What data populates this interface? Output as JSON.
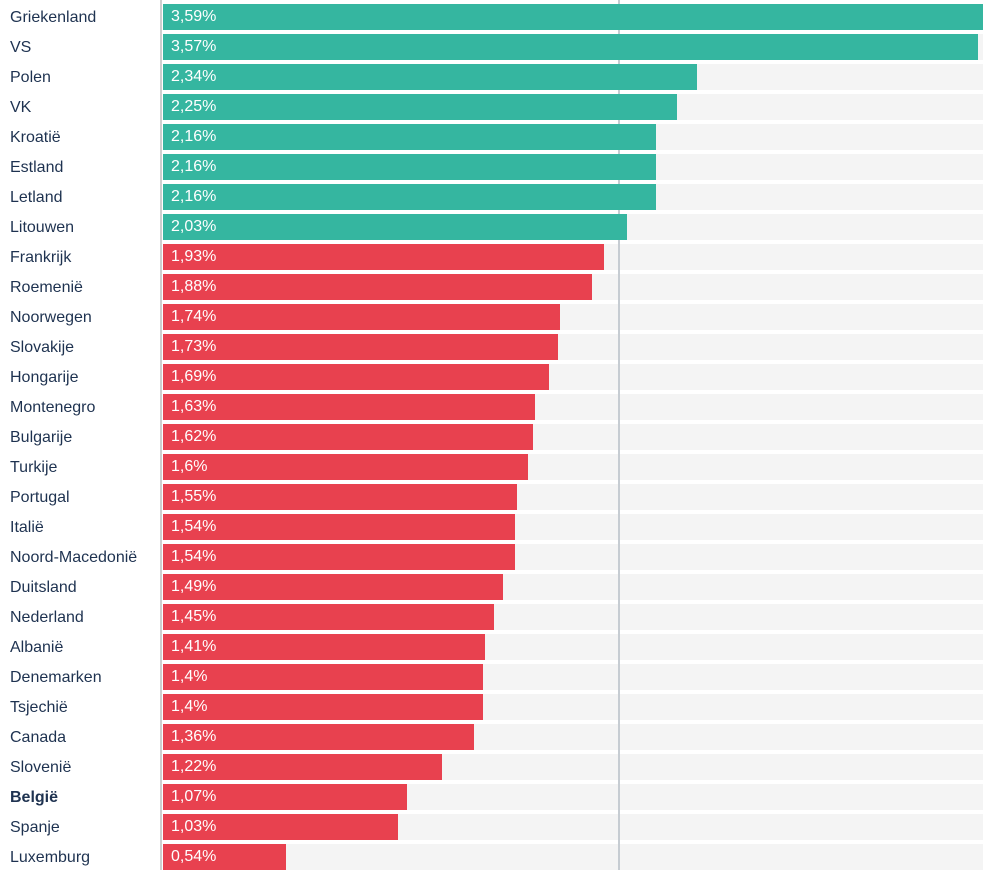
{
  "chart_data": {
    "type": "bar",
    "orientation": "horizontal",
    "title": "",
    "xlabel": "",
    "ylabel": "",
    "xlim": [
      0,
      3.59
    ],
    "gridline_at": 2,
    "grid": "single-vertical-line",
    "legend": "none",
    "value_format": "comma-decimal percent",
    "rows": [
      {
        "label": "Griekenland",
        "value": 3.59,
        "display": "3,59%",
        "group": "high",
        "bold": false
      },
      {
        "label": "VS",
        "value": 3.57,
        "display": "3,57%",
        "group": "high",
        "bold": false
      },
      {
        "label": "Polen",
        "value": 2.34,
        "display": "2,34%",
        "group": "high",
        "bold": false
      },
      {
        "label": "VK",
        "value": 2.25,
        "display": "2,25%",
        "group": "high",
        "bold": false
      },
      {
        "label": "Kroatië",
        "value": 2.16,
        "display": "2,16%",
        "group": "high",
        "bold": false
      },
      {
        "label": "Estland",
        "value": 2.16,
        "display": "2,16%",
        "group": "high",
        "bold": false
      },
      {
        "label": "Letland",
        "value": 2.16,
        "display": "2,16%",
        "group": "high",
        "bold": false
      },
      {
        "label": "Litouwen",
        "value": 2.03,
        "display": "2,03%",
        "group": "high",
        "bold": false
      },
      {
        "label": "Frankrijk",
        "value": 1.93,
        "display": "1,93%",
        "group": "low",
        "bold": false
      },
      {
        "label": "Roemenië",
        "value": 1.88,
        "display": "1,88%",
        "group": "low",
        "bold": false
      },
      {
        "label": "Noorwegen",
        "value": 1.74,
        "display": "1,74%",
        "group": "low",
        "bold": false
      },
      {
        "label": "Slovakije",
        "value": 1.73,
        "display": "1,73%",
        "group": "low",
        "bold": false
      },
      {
        "label": "Hongarije",
        "value": 1.69,
        "display": "1,69%",
        "group": "low",
        "bold": false
      },
      {
        "label": "Montenegro",
        "value": 1.63,
        "display": "1,63%",
        "group": "low",
        "bold": false
      },
      {
        "label": "Bulgarije",
        "value": 1.62,
        "display": "1,62%",
        "group": "low",
        "bold": false
      },
      {
        "label": "Turkije",
        "value": 1.6,
        "display": "1,6%",
        "group": "low",
        "bold": false
      },
      {
        "label": "Portugal",
        "value": 1.55,
        "display": "1,55%",
        "group": "low",
        "bold": false
      },
      {
        "label": "Italië",
        "value": 1.54,
        "display": "1,54%",
        "group": "low",
        "bold": false
      },
      {
        "label": "Noord-Macedonië",
        "value": 1.54,
        "display": "1,54%",
        "group": "low",
        "bold": false
      },
      {
        "label": "Duitsland",
        "value": 1.49,
        "display": "1,49%",
        "group": "low",
        "bold": false
      },
      {
        "label": "Nederland",
        "value": 1.45,
        "display": "1,45%",
        "group": "low",
        "bold": false
      },
      {
        "label": "Albanië",
        "value": 1.41,
        "display": "1,41%",
        "group": "low",
        "bold": false
      },
      {
        "label": "Denemarken",
        "value": 1.4,
        "display": "1,4%",
        "group": "low",
        "bold": false
      },
      {
        "label": "Tsjechië",
        "value": 1.4,
        "display": "1,4%",
        "group": "low",
        "bold": false
      },
      {
        "label": "Canada",
        "value": 1.36,
        "display": "1,36%",
        "group": "low",
        "bold": false
      },
      {
        "label": "Slovenië",
        "value": 1.22,
        "display": "1,22%",
        "group": "low",
        "bold": false
      },
      {
        "label": "België",
        "value": 1.07,
        "display": "1,07%",
        "group": "low",
        "bold": true
      },
      {
        "label": "Spanje",
        "value": 1.03,
        "display": "1,03%",
        "group": "low",
        "bold": false
      },
      {
        "label": "Luxemburg",
        "value": 0.54,
        "display": "0,54%",
        "group": "low",
        "bold": false
      }
    ]
  },
  "colors": {
    "high": "#35b6a0",
    "low": "#e8414f",
    "label_text": "#1e3250",
    "value_text": "#ffffff",
    "track": "#f4f4f4",
    "gridline": "#c6ccd2",
    "axisline": "#cfcfcf",
    "background": "#ffffff"
  }
}
